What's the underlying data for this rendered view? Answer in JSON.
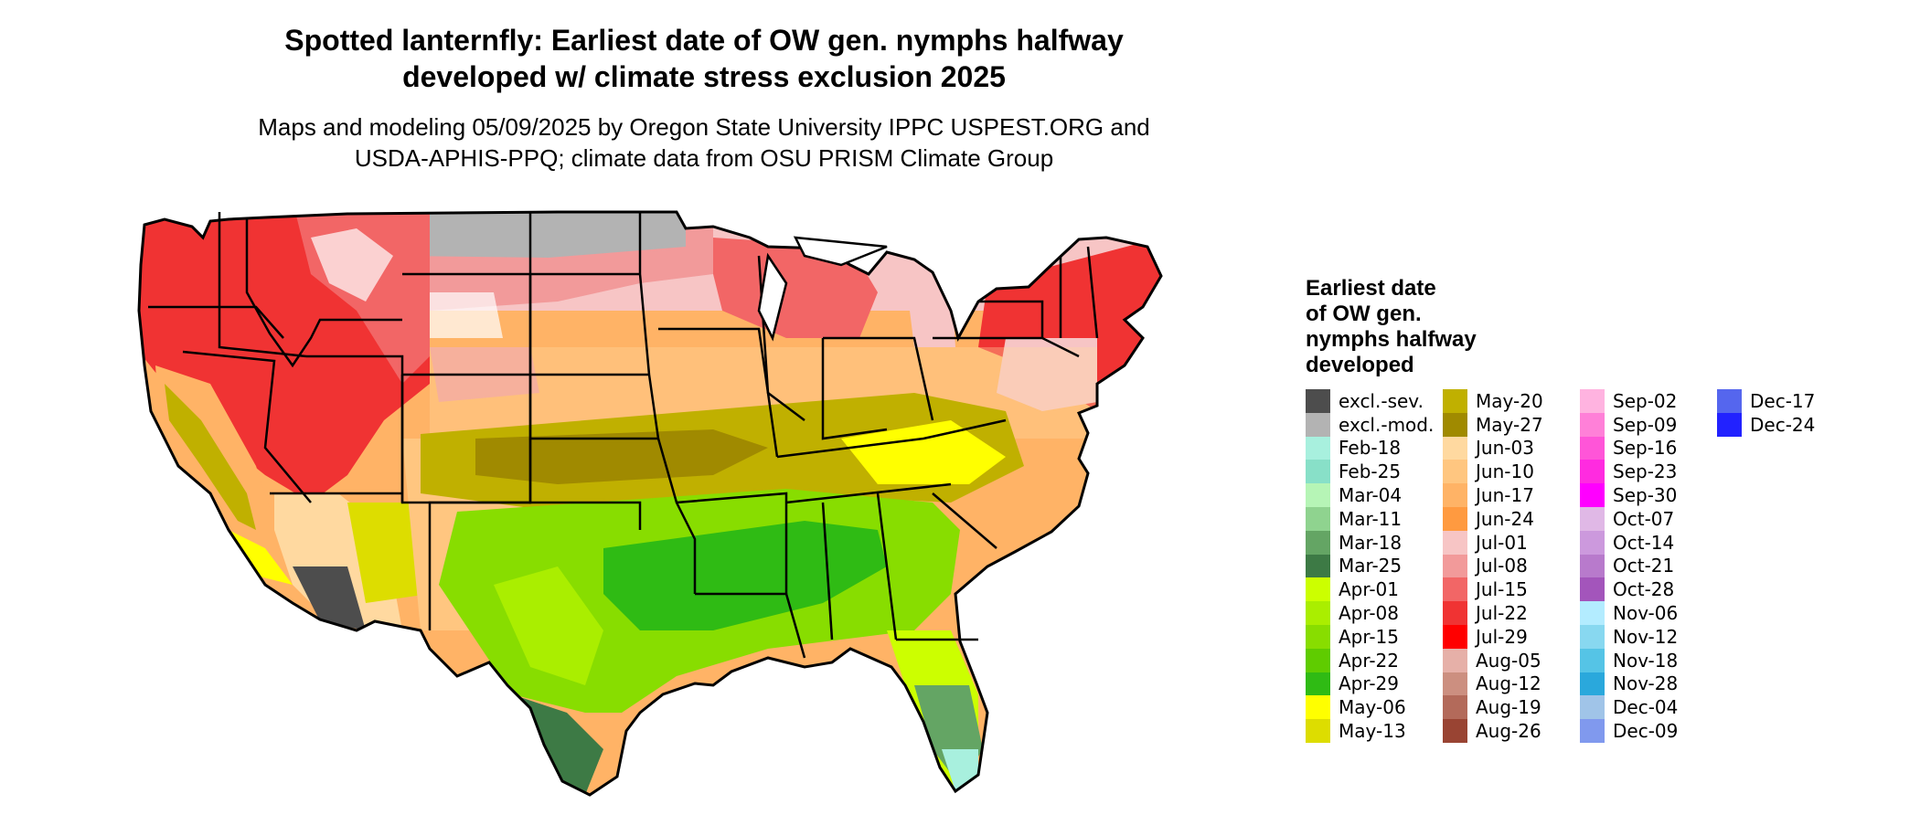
{
  "title": {
    "line1": "Spotted lanternfly: Earliest date of OW gen. nymphs halfway",
    "line2": "developed w/ climate stress exclusion 2025"
  },
  "subtitle": {
    "line1": "Maps and modeling 05/09/2025 by Oregon State University IPPC USPEST.ORG and",
    "line2": "USDA-APHIS-PPQ; climate data from OSU PRISM Climate Group"
  },
  "legend": {
    "title_lines": [
      "Earliest date",
      "of OW gen.",
      "nymphs halfway",
      "developed"
    ],
    "columns": [
      [
        {
          "label": "excl.-sev.",
          "color": "#4d4d4d"
        },
        {
          "label": "excl.-mod.",
          "color": "#b3b3b3"
        },
        {
          "label": "Feb-18",
          "color": "#a8f0de"
        },
        {
          "label": "Feb-25",
          "color": "#88e0c8"
        },
        {
          "label": "Mar-04",
          "color": "#b6f5b6"
        },
        {
          "label": "Mar-11",
          "color": "#8fd38f"
        },
        {
          "label": "Mar-18",
          "color": "#64a564"
        },
        {
          "label": "Mar-25",
          "color": "#3d7a45"
        },
        {
          "label": "Apr-01",
          "color": "#ccff00"
        },
        {
          "label": "Apr-08",
          "color": "#aaee00"
        },
        {
          "label": "Apr-15",
          "color": "#88dd00"
        },
        {
          "label": "Apr-22",
          "color": "#5fcc00"
        },
        {
          "label": "Apr-29",
          "color": "#2fbb14"
        },
        {
          "label": "May-06",
          "color": "#ffff00"
        },
        {
          "label": "May-13",
          "color": "#dddd00"
        }
      ],
      [
        {
          "label": "May-20",
          "color": "#c0b000"
        },
        {
          "label": "May-27",
          "color": "#a08a00"
        },
        {
          "label": "Jun-03",
          "color": "#ffd9a0"
        },
        {
          "label": "Jun-10",
          "color": "#ffc680"
        },
        {
          "label": "Jun-17",
          "color": "#ffb366"
        },
        {
          "label": "Jun-24",
          "color": "#ff9a40"
        },
        {
          "label": "Jul-01",
          "color": "#f7c5c5"
        },
        {
          "label": "Jul-08",
          "color": "#f29a9a"
        },
        {
          "label": "Jul-15",
          "color": "#f26666"
        },
        {
          "label": "Jul-22",
          "color": "#f03333"
        },
        {
          "label": "Jul-29",
          "color": "#ff0000"
        },
        {
          "label": "Aug-05",
          "color": "#e6b0a8"
        },
        {
          "label": "Aug-12",
          "color": "#cc8f80"
        },
        {
          "label": "Aug-19",
          "color": "#b36a5a"
        },
        {
          "label": "Aug-26",
          "color": "#994433"
        }
      ],
      [
        {
          "label": "Sep-02",
          "color": "#ffb3e0"
        },
        {
          "label": "Sep-09",
          "color": "#ff80d8"
        },
        {
          "label": "Sep-16",
          "color": "#ff55d8"
        },
        {
          "label": "Sep-23",
          "color": "#ff2be0"
        },
        {
          "label": "Sep-30",
          "color": "#ff00ff"
        },
        {
          "label": "Oct-07",
          "color": "#e0b8e6"
        },
        {
          "label": "Oct-14",
          "color": "#cc99dd"
        },
        {
          "label": "Oct-21",
          "color": "#b87acc"
        },
        {
          "label": "Oct-28",
          "color": "#a355bb"
        },
        {
          "label": "Nov-06",
          "color": "#b3ecff"
        },
        {
          "label": "Nov-12",
          "color": "#88d8f0"
        },
        {
          "label": "Nov-18",
          "color": "#55c4e6"
        },
        {
          "label": "Nov-28",
          "color": "#2aa8dc"
        },
        {
          "label": "Dec-04",
          "color": "#a0c4e8"
        },
        {
          "label": "Dec-09",
          "color": "#8099ee"
        }
      ],
      [
        {
          "label": "Dec-17",
          "color": "#5566ee"
        },
        {
          "label": "Dec-24",
          "color": "#2222ff"
        }
      ]
    ]
  }
}
